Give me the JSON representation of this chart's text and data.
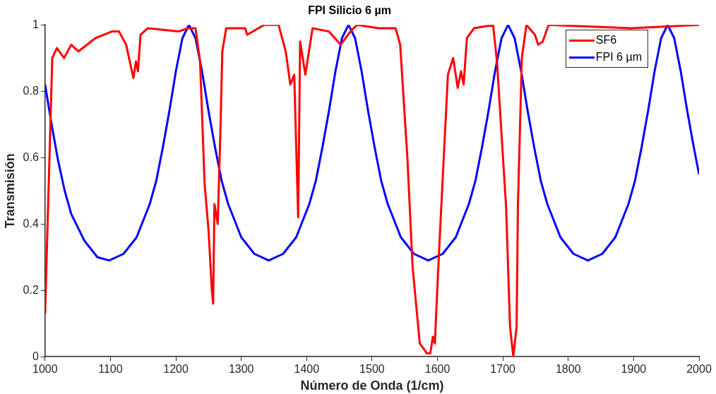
{
  "chart_data": {
    "type": "line",
    "title": "FPI Silicio 6 µm",
    "xlabel": "Número de Onda (1/cm)",
    "ylabel": "Transmisión",
    "xlim": [
      1000,
      2000
    ],
    "xticks": [
      1000,
      1100,
      1200,
      1300,
      1400,
      1500,
      1600,
      1700,
      1800,
      1900,
      2000
    ],
    "ylim": [
      0,
      1
    ],
    "yticks": [
      0,
      0.2,
      0.4,
      0.6,
      0.8,
      1
    ],
    "grid": false,
    "legend": "top right",
    "marker": "none",
    "line_style": "solid",
    "series": [
      {
        "name": "SF6",
        "color": "#ff0000",
        "x": [
          1000,
          1011,
          1018,
          1029,
          1040,
          1051,
          1077,
          1102,
          1113,
          1124,
          1135,
          1139,
          1142,
          1146,
          1157,
          1204,
          1219,
          1230,
          1237,
          1244,
          1250,
          1255,
          1257,
          1259,
          1264,
          1268,
          1271,
          1277,
          1306,
          1309,
          1335,
          1357,
          1368,
          1375,
          1381,
          1387,
          1390,
          1398,
          1409,
          1434,
          1452,
          1467,
          1477,
          1510,
          1536,
          1543,
          1554,
          1562,
          1573,
          1584,
          1589,
          1593,
          1596,
          1602,
          1616,
          1624,
          1631,
          1636,
          1640,
          1645,
          1656,
          1685,
          1691,
          1698,
          1705,
          1711,
          1716,
          1721,
          1723,
          1729,
          1736,
          1749,
          1754,
          1761,
          1770,
          1896,
          2000
        ],
        "values": [
          0.13,
          0.9,
          0.93,
          0.9,
          0.94,
          0.92,
          0.96,
          0.98,
          0.98,
          0.94,
          0.84,
          0.89,
          0.86,
          0.97,
          0.99,
          0.98,
          0.99,
          0.99,
          0.89,
          0.52,
          0.38,
          0.2,
          0.16,
          0.46,
          0.4,
          0.67,
          0.92,
          0.99,
          0.99,
          0.97,
          1,
          1,
          0.92,
          0.82,
          0.85,
          0.42,
          0.95,
          0.85,
          0.99,
          0.98,
          0.94,
          0.98,
          1,
          0.99,
          0.99,
          0.94,
          0.6,
          0.27,
          0.04,
          0.01,
          0.01,
          0.06,
          0.04,
          0.3,
          0.85,
          0.9,
          0.81,
          0.86,
          0.82,
          0.96,
          0.99,
          1,
          0.89,
          0.67,
          0.45,
          0.09,
          0,
          0.09,
          0.45,
          0.9,
          1,
          0.97,
          0.94,
          0.95,
          1,
          0.99,
          1
        ]
      },
      {
        "name": "FPI 6 µm",
        "color": "#0000ff",
        "x": [
          1000,
          1010,
          1020,
          1030,
          1040,
          1060,
          1080,
          1098,
          1120,
          1140,
          1160,
          1170,
          1180,
          1190,
          1200,
          1210,
          1220,
          1230,
          1240,
          1250,
          1260,
          1270,
          1280,
          1300,
          1320,
          1342,
          1364,
          1384,
          1404,
          1414,
          1424,
          1434,
          1444,
          1454,
          1464,
          1474,
          1484,
          1494,
          1504,
          1514,
          1524,
          1544,
          1564,
          1586,
          1608,
          1628,
          1648,
          1658,
          1668,
          1678,
          1688,
          1698,
          1708,
          1718,
          1728,
          1738,
          1748,
          1758,
          1768,
          1788,
          1808,
          1830,
          1852,
          1872,
          1892,
          1902,
          1912,
          1922,
          1932,
          1942,
          1952,
          1962,
          1972,
          1982,
          1992,
          2000
        ],
        "values": [
          0.82,
          0.7,
          0.59,
          0.5,
          0.43,
          0.35,
          0.3,
          0.29,
          0.31,
          0.36,
          0.46,
          0.53,
          0.63,
          0.74,
          0.86,
          0.96,
          1,
          0.96,
          0.86,
          0.74,
          0.63,
          0.53,
          0.46,
          0.36,
          0.31,
          0.29,
          0.31,
          0.36,
          0.46,
          0.53,
          0.63,
          0.74,
          0.86,
          0.96,
          1,
          0.96,
          0.86,
          0.74,
          0.63,
          0.53,
          0.46,
          0.36,
          0.31,
          0.29,
          0.31,
          0.36,
          0.46,
          0.53,
          0.63,
          0.74,
          0.86,
          0.96,
          1,
          0.96,
          0.86,
          0.74,
          0.63,
          0.53,
          0.46,
          0.36,
          0.31,
          0.29,
          0.31,
          0.36,
          0.46,
          0.53,
          0.63,
          0.74,
          0.86,
          0.96,
          1,
          0.96,
          0.86,
          0.74,
          0.63,
          0.55
        ]
      }
    ]
  }
}
